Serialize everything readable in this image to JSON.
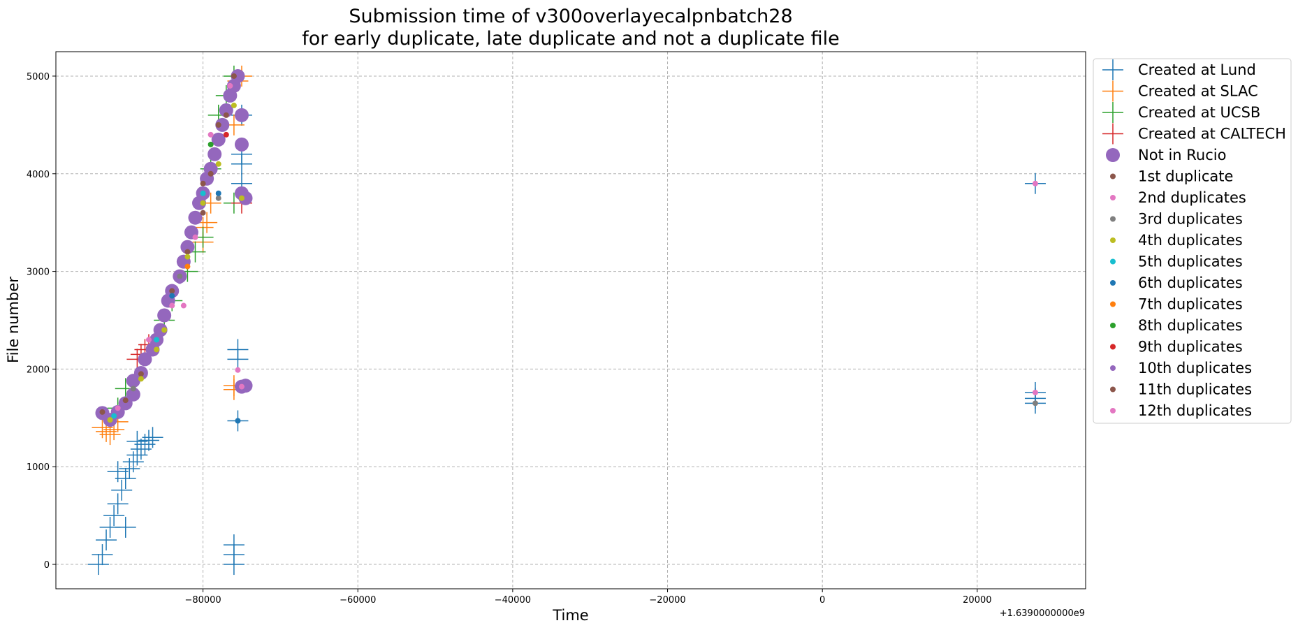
{
  "chart_data": {
    "type": "scatter",
    "title": [
      "Submission time of v300overlayecalpnbatch28",
      "for early duplicate, late duplicate and not a duplicate file"
    ],
    "xlabel": "Time",
    "ylabel": "File number",
    "x_offset_label": "+1.6390000000e9",
    "xlim": [
      -99000,
      34000
    ],
    "ylim": [
      -250,
      5250
    ],
    "xticks": [
      -80000,
      -60000,
      -40000,
      -20000,
      0,
      20000
    ],
    "xtick_labels": [
      "−80000",
      "−60000",
      "−40000",
      "−20000",
      "0",
      "20000"
    ],
    "yticks": [
      0,
      1000,
      2000,
      3000,
      4000,
      5000
    ],
    "ytick_labels": [
      "0",
      "1000",
      "2000",
      "3000",
      "4000",
      "5000"
    ],
    "grid": true,
    "legend_position": "outside-right",
    "series": [
      {
        "name": "Created at Lund",
        "marker": "plus",
        "color": "#1f77b4",
        "points": [
          [
            -93500,
            0
          ],
          [
            -93000,
            100
          ],
          [
            -92500,
            250
          ],
          [
            -92000,
            380
          ],
          [
            -91500,
            500
          ],
          [
            -91000,
            620
          ],
          [
            -90500,
            760
          ],
          [
            -90000,
            880
          ],
          [
            -89500,
            980
          ],
          [
            -89000,
            1050
          ],
          [
            -88500,
            1120
          ],
          [
            -88000,
            1180
          ],
          [
            -87500,
            1230
          ],
          [
            -87000,
            1270
          ],
          [
            -86500,
            1300
          ],
          [
            -90000,
            380
          ],
          [
            -91000,
            950
          ],
          [
            -88500,
            1260
          ],
          [
            -76000,
            100
          ],
          [
            -76000,
            200
          ],
          [
            -76000,
            0
          ],
          [
            -75500,
            1470
          ],
          [
            -75500,
            2100
          ],
          [
            -75500,
            2200
          ],
          [
            -75000,
            3900
          ],
          [
            -75000,
            4100
          ],
          [
            -75000,
            4200
          ],
          [
            -75000,
            4600
          ],
          [
            27500,
            3900
          ],
          [
            27500,
            1760
          ],
          [
            27500,
            1700
          ],
          [
            27500,
            1650
          ]
        ]
      },
      {
        "name": "Created at SLAC",
        "marker": "plus",
        "color": "#ff7f0e",
        "points": [
          [
            -93000,
            1400
          ],
          [
            -92500,
            1360
          ],
          [
            -92000,
            1330
          ],
          [
            -91500,
            1380
          ],
          [
            -91000,
            1460
          ],
          [
            -80000,
            3300
          ],
          [
            -80000,
            3450
          ],
          [
            -79500,
            3500
          ],
          [
            -79000,
            3700
          ],
          [
            -76000,
            1790
          ],
          [
            -76000,
            1830
          ],
          [
            -76000,
            4500
          ],
          [
            -75500,
            4950
          ],
          [
            -75000,
            5000
          ]
        ]
      },
      {
        "name": "Created at UCSB",
        "marker": "plus",
        "color": "#2ca02c",
        "points": [
          [
            -91000,
            1600
          ],
          [
            -90000,
            1800
          ],
          [
            -85000,
            2500
          ],
          [
            -84000,
            2700
          ],
          [
            -82000,
            3000
          ],
          [
            -81000,
            3200
          ],
          [
            -80000,
            3350
          ],
          [
            -79000,
            4050
          ],
          [
            -78000,
            4600
          ],
          [
            -77000,
            4800
          ],
          [
            -76000,
            5000
          ],
          [
            -76000,
            3700
          ]
        ]
      },
      {
        "name": "Created at CALTECH",
        "marker": "plus",
        "color": "#d62728",
        "points": [
          [
            -88000,
            2150
          ],
          [
            -87500,
            2200
          ],
          [
            -87000,
            2250
          ],
          [
            -88500,
            2100
          ],
          [
            -75000,
            3700
          ]
        ]
      },
      {
        "name": "Not in Rucio",
        "marker": "circle-large",
        "color": "#9467bd",
        "points": [
          [
            -93000,
            1550
          ],
          [
            -92000,
            1480
          ],
          [
            -91000,
            1560
          ],
          [
            -90000,
            1650
          ],
          [
            -89000,
            1740
          ],
          [
            -89000,
            1880
          ],
          [
            -88000,
            1960
          ],
          [
            -87500,
            2100
          ],
          [
            -86500,
            2200
          ],
          [
            -86000,
            2300
          ],
          [
            -85500,
            2400
          ],
          [
            -85000,
            2550
          ],
          [
            -84500,
            2700
          ],
          [
            -84000,
            2800
          ],
          [
            -83000,
            2950
          ],
          [
            -82500,
            3100
          ],
          [
            -82000,
            3250
          ],
          [
            -81500,
            3400
          ],
          [
            -81000,
            3550
          ],
          [
            -80500,
            3700
          ],
          [
            -80000,
            3800
          ],
          [
            -79500,
            3950
          ],
          [
            -79000,
            4050
          ],
          [
            -78500,
            4200
          ],
          [
            -78000,
            4350
          ],
          [
            -77500,
            4500
          ],
          [
            -77000,
            4650
          ],
          [
            -76500,
            4800
          ],
          [
            -76000,
            4900
          ],
          [
            -75500,
            5000
          ],
          [
            -75000,
            4600
          ],
          [
            -75000,
            4300
          ],
          [
            -75000,
            3800
          ],
          [
            -74500,
            3750
          ],
          [
            -75000,
            1820
          ],
          [
            -74500,
            1830
          ]
        ]
      },
      {
        "name": "1st duplicate",
        "marker": "dot",
        "color": "#8c564b",
        "points": [
          [
            -93000,
            1560
          ],
          [
            -90000,
            1680
          ],
          [
            -88000,
            1950
          ],
          [
            -84000,
            2800
          ],
          [
            -82000,
            3200
          ],
          [
            -80000,
            3900
          ],
          [
            -79000,
            4000
          ],
          [
            -78000,
            4500
          ],
          [
            -77000,
            4600
          ],
          [
            -76000,
            5000
          ]
        ]
      },
      {
        "name": "2nd duplicates",
        "marker": "dot",
        "color": "#e377c2",
        "points": [
          [
            -91000,
            1600
          ],
          [
            -87000,
            2300
          ],
          [
            -84000,
            2650
          ],
          [
            -81000,
            3350
          ],
          [
            -79000,
            4400
          ],
          [
            -76500,
            4900
          ],
          [
            -75500,
            1990
          ],
          [
            -75000,
            1820
          ],
          [
            27500,
            3900
          ],
          [
            27500,
            1760
          ]
        ]
      },
      {
        "name": "3rd duplicates",
        "marker": "dot",
        "color": "#7f7f7f",
        "points": [
          [
            -89000,
            1800
          ],
          [
            -83000,
            2950
          ],
          [
            -78000,
            3750
          ],
          [
            27500,
            1650
          ]
        ]
      },
      {
        "name": "4th duplicates",
        "marker": "dot",
        "color": "#bcbd22",
        "points": [
          [
            -92000,
            1480
          ],
          [
            -88000,
            1900
          ],
          [
            -86000,
            2200
          ],
          [
            -85000,
            2400
          ],
          [
            -82000,
            3150
          ],
          [
            -80000,
            3700
          ],
          [
            -78000,
            4100
          ],
          [
            -76000,
            4700
          ],
          [
            -75000,
            3750
          ]
        ]
      },
      {
        "name": "5th duplicates",
        "marker": "dot",
        "color": "#17becf",
        "points": [
          [
            -91500,
            1520
          ],
          [
            -86000,
            2300
          ],
          [
            -80000,
            3800
          ]
        ]
      },
      {
        "name": "6th duplicates",
        "marker": "dot",
        "color": "#1f77b4",
        "points": [
          [
            -75500,
            1470
          ],
          [
            -78000,
            3800
          ],
          [
            -84000,
            2750
          ]
        ]
      },
      {
        "name": "7th duplicates",
        "marker": "dot",
        "color": "#ff7f0e",
        "points": [
          [
            -82000,
            3050
          ]
        ]
      },
      {
        "name": "8th duplicates",
        "marker": "dot",
        "color": "#2ca02c",
        "points": [
          [
            -79000,
            4300
          ]
        ]
      },
      {
        "name": "9th duplicates",
        "marker": "dot",
        "color": "#d62728",
        "points": [
          [
            -77000,
            4400
          ]
        ]
      },
      {
        "name": "10th duplicates",
        "marker": "dot",
        "color": "#9467bd",
        "points": [
          [
            -83000,
            2900
          ]
        ]
      },
      {
        "name": "11th duplicates",
        "marker": "dot",
        "color": "#8c564b",
        "points": [
          [
            -80000,
            3600
          ]
        ]
      },
      {
        "name": "12th duplicates",
        "marker": "dot",
        "color": "#e377c2",
        "points": [
          [
            -82500,
            2650
          ]
        ]
      }
    ]
  }
}
